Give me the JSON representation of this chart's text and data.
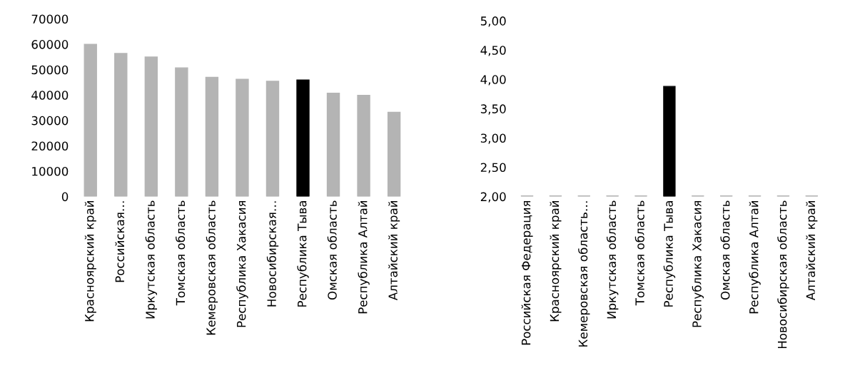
{
  "chart_data": [
    {
      "type": "bar",
      "categories": [
        "Красноярский край",
        "Российская…",
        "Иркутская область",
        "Томская область",
        "Кемеровская область",
        "Республика Хакасия",
        "Новосибирская…",
        "Республика Тыва",
        "Омская область",
        "Республика Алтай",
        "Алтайский край"
      ],
      "values": [
        60000,
        56400,
        55000,
        50700,
        47000,
        46200,
        45400,
        45900,
        40700,
        39900,
        33200
      ],
      "colors": [
        "#b4b4b4",
        "#b4b4b4",
        "#b4b4b4",
        "#b4b4b4",
        "#b4b4b4",
        "#b4b4b4",
        "#b4b4b4",
        "#000000",
        "#b4b4b4",
        "#b4b4b4",
        "#b4b4b4"
      ],
      "ylim": [
        0,
        70000
      ],
      "yticks": [
        0,
        10000,
        20000,
        30000,
        40000,
        50000,
        60000,
        70000
      ],
      "grid": false
    },
    {
      "type": "bar",
      "categories": [
        "Российская Федерация",
        "Красноярский край",
        "Кемеровская область…",
        "Иркутская область",
        "Томская область",
        "Республика Тыва",
        "Республика Хакасия",
        "Омская область",
        "Республика Алтай",
        "Новосибирская область",
        "Алтайский край"
      ],
      "values": [
        2.01,
        2.01,
        2.01,
        2.01,
        2.01,
        3.88,
        2.01,
        2.01,
        2.01,
        2.01,
        2.01
      ],
      "colors": [
        "#b4b4b4",
        "#b4b4b4",
        "#b4b4b4",
        "#b4b4b4",
        "#b4b4b4",
        "#000000",
        "#b4b4b4",
        "#b4b4b4",
        "#b4b4b4",
        "#b4b4b4",
        "#b4b4b4"
      ],
      "ylim": [
        2.0,
        5.0
      ],
      "yticks": [
        {
          "value": 2.0,
          "label": "2,00"
        },
        {
          "value": 2.5,
          "label": "2,50"
        },
        {
          "value": 3.0,
          "label": "3,00"
        },
        {
          "value": 3.5,
          "label": "3,50"
        },
        {
          "value": 4.0,
          "label": "4,00"
        },
        {
          "value": 4.5,
          "label": "4,50"
        },
        {
          "value": 5.0,
          "label": "5,00"
        }
      ],
      "grid": false
    }
  ]
}
